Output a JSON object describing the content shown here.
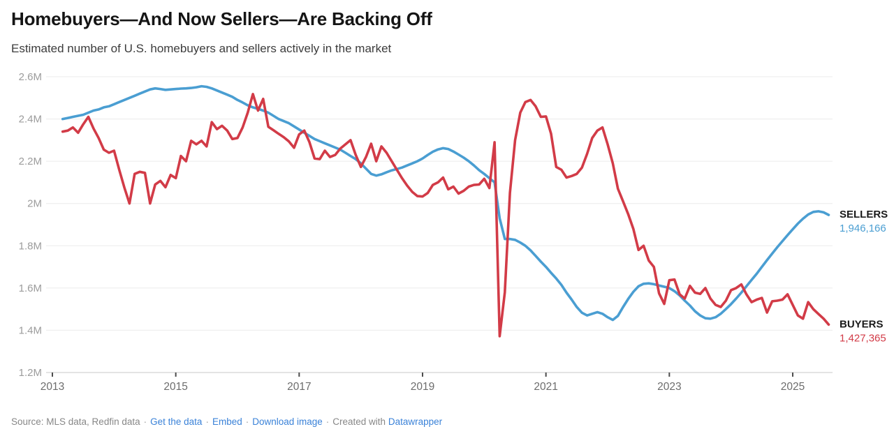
{
  "header": {
    "title": "Homebuyers—And Now Sellers—Are Backing Off",
    "subtitle": "Estimated number of U.S. homebuyers and sellers actively in the market"
  },
  "chart_data": {
    "type": "line",
    "title": "Homebuyers—And Now Sellers—Are Backing Off",
    "subtitle": "Estimated number of U.S. homebuyers and sellers actively in the market",
    "unit": "millions of people",
    "x_domain": [
      2013.0,
      2025.75
    ],
    "y_domain": [
      1.2,
      2.6
    ],
    "grid": "horizontal",
    "legend_position": "right-end-labels",
    "start_year": 2013,
    "start_month": 3,
    "frequency": "monthly",
    "y_ticks": [
      {
        "label": "2.6M",
        "value": 2.6
      },
      {
        "label": "2.4M",
        "value": 2.4
      },
      {
        "label": "2.2M",
        "value": 2.2
      },
      {
        "label": "2M",
        "value": 2.0
      },
      {
        "label": "1.8M",
        "value": 1.8
      },
      {
        "label": "1.6M",
        "value": 1.6
      },
      {
        "label": "1.4M",
        "value": 1.4
      },
      {
        "label": "1.2M",
        "value": 1.2
      }
    ],
    "x_ticks": [
      {
        "label": "2013",
        "year": 2013
      },
      {
        "label": "2015",
        "year": 2015
      },
      {
        "label": "2017",
        "year": 2017
      },
      {
        "label": "2019",
        "year": 2019
      },
      {
        "label": "2021",
        "year": 2021
      },
      {
        "label": "2023",
        "year": 2023
      },
      {
        "label": "2025",
        "year": 2025
      }
    ],
    "series": [
      {
        "name": "SELLERS",
        "color": "#4a9ed2",
        "end_label": "SELLERS",
        "end_value_label": "1,946,166",
        "values": [
          2.4,
          2.405,
          2.41,
          2.415,
          2.42,
          2.43,
          2.44,
          2.445,
          2.455,
          2.46,
          2.47,
          2.48,
          2.49,
          2.5,
          2.51,
          2.52,
          2.53,
          2.54,
          2.545,
          2.542,
          2.538,
          2.54,
          2.542,
          2.544,
          2.545,
          2.547,
          2.55,
          2.555,
          2.552,
          2.545,
          2.535,
          2.525,
          2.515,
          2.505,
          2.49,
          2.478,
          2.465,
          2.455,
          2.448,
          2.44,
          2.43,
          2.415,
          2.4,
          2.39,
          2.38,
          2.365,
          2.35,
          2.335,
          2.32,
          2.305,
          2.295,
          2.285,
          2.275,
          2.265,
          2.255,
          2.24,
          2.225,
          2.21,
          2.19,
          2.165,
          2.14,
          2.132,
          2.138,
          2.148,
          2.157,
          2.163,
          2.17,
          2.18,
          2.19,
          2.2,
          2.213,
          2.23,
          2.245,
          2.256,
          2.262,
          2.258,
          2.246,
          2.232,
          2.217,
          2.2,
          2.18,
          2.158,
          2.14,
          2.12,
          2.1,
          1.93,
          1.832,
          1.832,
          1.828,
          1.815,
          1.8,
          1.778,
          1.752,
          1.725,
          1.7,
          1.672,
          1.645,
          1.615,
          1.578,
          1.545,
          1.51,
          1.483,
          1.47,
          1.478,
          1.486,
          1.478,
          1.462,
          1.449,
          1.468,
          1.51,
          1.548,
          1.582,
          1.608,
          1.62,
          1.622,
          1.618,
          1.612,
          1.606,
          1.6,
          1.585,
          1.565,
          1.54,
          1.517,
          1.49,
          1.47,
          1.457,
          1.455,
          1.462,
          1.478,
          1.5,
          1.524,
          1.55,
          1.578,
          1.608,
          1.638,
          1.668,
          1.7,
          1.732,
          1.763,
          1.793,
          1.822,
          1.85,
          1.878,
          1.905,
          1.928,
          1.948,
          1.96,
          1.963,
          1.958,
          1.946
        ]
      },
      {
        "name": "BUYERS",
        "color": "#d23b47",
        "end_label": "BUYERS",
        "end_value_label": "1,427,365",
        "values": [
          2.34,
          2.345,
          2.36,
          2.335,
          2.375,
          2.41,
          2.355,
          2.31,
          2.255,
          2.24,
          2.25,
          2.16,
          2.075,
          2.0,
          2.14,
          2.15,
          2.145,
          2.0,
          2.09,
          2.107,
          2.077,
          2.135,
          2.12,
          2.225,
          2.2,
          2.297,
          2.28,
          2.297,
          2.27,
          2.385,
          2.352,
          2.368,
          2.345,
          2.305,
          2.31,
          2.36,
          2.43,
          2.518,
          2.44,
          2.495,
          2.363,
          2.347,
          2.33,
          2.314,
          2.294,
          2.264,
          2.327,
          2.345,
          2.29,
          2.213,
          2.21,
          2.25,
          2.22,
          2.23,
          2.26,
          2.28,
          2.3,
          2.23,
          2.173,
          2.22,
          2.283,
          2.2,
          2.27,
          2.24,
          2.2,
          2.16,
          2.12,
          2.085,
          2.055,
          2.035,
          2.033,
          2.05,
          2.088,
          2.1,
          2.123,
          2.067,
          2.08,
          2.047,
          2.06,
          2.08,
          2.088,
          2.09,
          2.117,
          2.073,
          2.29,
          1.372,
          1.58,
          2.05,
          2.3,
          2.43,
          2.48,
          2.49,
          2.46,
          2.41,
          2.412,
          2.33,
          2.173,
          2.16,
          2.123,
          2.13,
          2.14,
          2.17,
          2.235,
          2.31,
          2.345,
          2.36,
          2.28,
          2.19,
          2.07,
          2.01,
          1.95,
          1.88,
          1.78,
          1.8,
          1.73,
          1.7,
          1.575,
          1.525,
          1.637,
          1.64,
          1.57,
          1.55,
          1.61,
          1.578,
          1.572,
          1.6,
          1.55,
          1.52,
          1.51,
          1.54,
          1.59,
          1.6,
          1.617,
          1.57,
          1.533,
          1.545,
          1.553,
          1.484,
          1.537,
          1.54,
          1.545,
          1.57,
          1.52,
          1.47,
          1.455,
          1.533,
          1.5,
          1.477,
          1.455,
          1.427
        ]
      }
    ]
  },
  "footer": {
    "source": "Source: MLS data, Redfin data",
    "separator": "·",
    "links": [
      "Get the data",
      "Embed",
      "Download image"
    ],
    "created_with": "Created with",
    "credit_link": "Datawrapper"
  }
}
